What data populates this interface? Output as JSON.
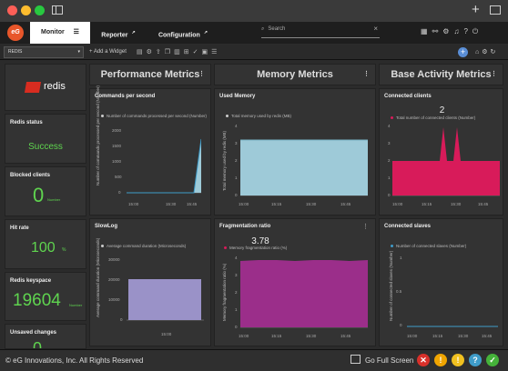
{
  "colors": {
    "accent": "#e8562a",
    "kpi_green": "#5fd44f",
    "memory": "#9ecad8",
    "clients": "#d81b5a",
    "slowlog": "#9a92c8",
    "frag": "#9b2e8a"
  },
  "header": {
    "tab_monitor": "Monitor",
    "tab_reporter": "Reporter",
    "tab_configuration": "Configuration",
    "search_placeholder": "Search"
  },
  "toolbar": {
    "select_value": "REDIS",
    "add_widget": "+ Add a Widget"
  },
  "sections": {
    "performance": "Performance Metrics",
    "memory": "Memory Metrics",
    "activity": "Base Activity Metrics"
  },
  "logo": {
    "text": "redis"
  },
  "kpis": {
    "status": {
      "label": "Redis status",
      "value": "Success"
    },
    "blocked": {
      "label": "Blocked clients",
      "value": "0",
      "unit": "Number"
    },
    "hitrate": {
      "label": "Hit rate",
      "value": "100",
      "unit": "%"
    },
    "keyspace": {
      "label": "Redis keyspace",
      "value": "19604",
      "unit": "Number"
    },
    "unsaved": {
      "label": "Unsaved changes",
      "value": "0"
    }
  },
  "charts": {
    "commands": {
      "title": "Commands per second",
      "legend": "Number of commands processed per second (Number)",
      "ylabel": "Number of commands processed per second (Number)",
      "yticks": [
        "2000",
        "1500",
        "1000",
        "500",
        "0"
      ],
      "xticks": [
        "15:00",
        "15:30",
        "15:45"
      ]
    },
    "memory": {
      "title": "Used Memory",
      "legend": "Total memory used by redis (MB)",
      "ylabel": "Total memory used by redis (MB)",
      "yticks": [
        "4",
        "3",
        "2",
        "1",
        "0"
      ],
      "xticks": [
        "15:00",
        "15:15",
        "15:30",
        "15:45"
      ]
    },
    "clients": {
      "title": "Connected clients",
      "value": "2",
      "legend": "Total number of connected clients (Number)",
      "yticks": [
        "4",
        "3",
        "2",
        "1",
        "0"
      ],
      "xticks": [
        "15:00",
        "15:15",
        "15:30",
        "15:45"
      ]
    },
    "slowlog": {
      "title": "SlowLog",
      "legend": "Average command duration (Microseconds)",
      "ylabel": "Average command duration (Microseconds)",
      "yticks": [
        "30000",
        "20000",
        "10000",
        "0"
      ],
      "xticks": [
        "15:00"
      ]
    },
    "frag": {
      "title": "Fragmentation ratio",
      "value": "3.78",
      "legend": "Memory fragmentation ratio (%)",
      "ylabel": "Memory fragmentation ratio (%)",
      "yticks": [
        "4",
        "3",
        "2",
        "1",
        "0"
      ],
      "xticks": [
        "15:00",
        "15:15",
        "15:30",
        "15:45"
      ]
    },
    "slaves": {
      "title": "Connected slaves",
      "legend": "Number of connected slaves (Number)",
      "ylabel": "Number of connected slaves (Number)",
      "yticks": [
        "1",
        "0.5",
        "0"
      ],
      "xticks": [
        "15:00",
        "15:15",
        "15:30",
        "15:45"
      ]
    }
  },
  "footer": {
    "copyright": "© eG Innovations, Inc. All Rights Reserved",
    "fullscreen": "Go Full Screen"
  }
}
